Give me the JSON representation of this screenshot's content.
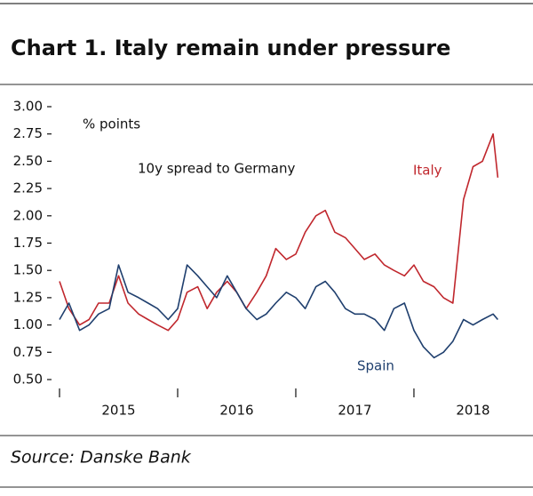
{
  "chart_data": {
    "type": "line",
    "title": "Chart 1. Italy remain under pressure",
    "y_label": "% points",
    "subtitle": "10y spread to Germany",
    "source": "Source: Danske Bank",
    "x": [
      2015.0,
      2015.08,
      2015.17,
      2015.25,
      2015.33,
      2015.42,
      2015.5,
      2015.58,
      2015.67,
      2015.75,
      2015.83,
      2015.92,
      2016.0,
      2016.08,
      2016.17,
      2016.25,
      2016.33,
      2016.42,
      2016.5,
      2016.58,
      2016.67,
      2016.75,
      2016.83,
      2016.92,
      2017.0,
      2017.08,
      2017.17,
      2017.25,
      2017.33,
      2017.42,
      2017.5,
      2017.58,
      2017.67,
      2017.75,
      2017.83,
      2017.92,
      2018.0,
      2018.08,
      2018.17,
      2018.25,
      2018.33,
      2018.42,
      2018.5,
      2018.58,
      2018.67,
      2018.71
    ],
    "series": [
      {
        "name": "Italy",
        "color": "#c0272d",
        "values": [
          1.4,
          1.15,
          1.0,
          1.05,
          1.2,
          1.2,
          1.45,
          1.2,
          1.1,
          1.05,
          1.0,
          0.95,
          1.05,
          1.3,
          1.35,
          1.15,
          1.3,
          1.4,
          1.3,
          1.15,
          1.3,
          1.45,
          1.7,
          1.6,
          1.65,
          1.85,
          2.0,
          2.05,
          1.85,
          1.8,
          1.7,
          1.6,
          1.65,
          1.55,
          1.5,
          1.45,
          1.55,
          1.4,
          1.35,
          1.25,
          1.2,
          2.15,
          2.45,
          2.5,
          2.75,
          2.35
        ]
      },
      {
        "name": "Spain",
        "color": "#1f3f6e",
        "values": [
          1.05,
          1.2,
          0.95,
          1.0,
          1.1,
          1.15,
          1.55,
          1.3,
          1.25,
          1.2,
          1.15,
          1.05,
          1.15,
          1.55,
          1.45,
          1.35,
          1.25,
          1.45,
          1.3,
          1.15,
          1.05,
          1.1,
          1.2,
          1.3,
          1.25,
          1.15,
          1.35,
          1.4,
          1.3,
          1.15,
          1.1,
          1.1,
          1.05,
          0.95,
          1.15,
          1.2,
          0.95,
          0.8,
          0.7,
          0.75,
          0.85,
          1.05,
          1.0,
          1.05,
          1.1,
          1.05
        ]
      }
    ],
    "xlim": [
      2015,
      2018.85
    ],
    "xticks": [
      {
        "value": 2015.5,
        "label": "2015"
      },
      {
        "value": 2016.5,
        "label": "2016"
      },
      {
        "value": 2017.5,
        "label": "2017"
      },
      {
        "value": 2018.5,
        "label": "2018"
      }
    ],
    "ylim": [
      0.5,
      3
    ],
    "yticks": [
      {
        "value": 0.5,
        "label": "0.50"
      },
      {
        "value": 0.75,
        "label": "0.75"
      },
      {
        "value": 1,
        "label": "1.00"
      },
      {
        "value": 1.25,
        "label": "1.25"
      },
      {
        "value": 1.5,
        "label": "1.50"
      },
      {
        "value": 1.75,
        "label": "1.75"
      },
      {
        "value": 2,
        "label": "2.00"
      },
      {
        "value": 2.25,
        "label": "2.25"
      },
      {
        "value": 2.5,
        "label": "2.50"
      },
      {
        "value": 2.75,
        "label": "2.75"
      },
      {
        "value": 3,
        "label": "3.00"
      }
    ]
  }
}
